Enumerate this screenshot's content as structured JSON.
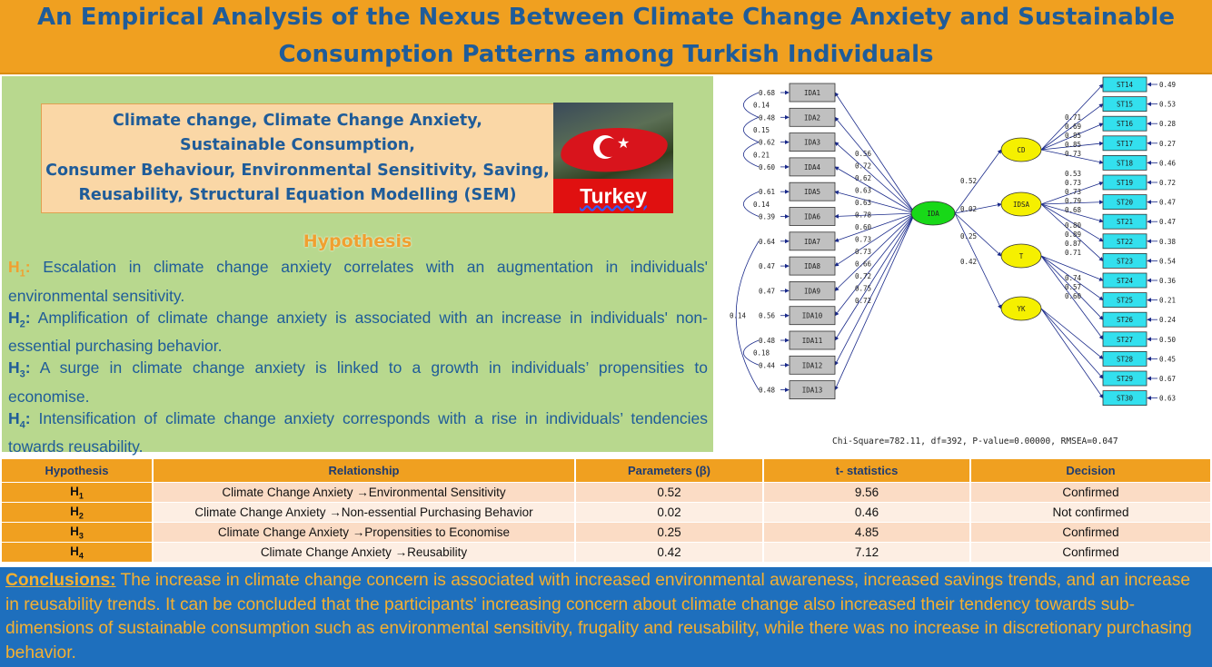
{
  "title": "An Empirical Analysis of the Nexus Between Climate Change Anxiety and Sustainable Consumption Patterns among Turkish Individuals",
  "keywords": [
    "Climate change, Climate Change Anxiety,",
    "Sustainable Consumption,",
    "Consumer Behaviour, Environmental Sensitivity, Saving,",
    "Reusability, Structural Equation Modelling (SEM)"
  ],
  "flag_label": "Turkey",
  "hypothesis_title": "Hypothesis",
  "hypotheses": [
    {
      "label": "H",
      "sub": "1",
      "text": "Escalation in climate change anxiety correlates with an augmentation in individuals' environmental sensitivity."
    },
    {
      "label": "H",
      "sub": "2",
      "text": "Amplification of climate change anxiety is associated with an increase in individuals' non-essential purchasing behavior."
    },
    {
      "label": "H",
      "sub": "3",
      "text": "A surge in climate change anxiety is linked to a growth in individuals’ propensities to economise."
    },
    {
      "label": "H",
      "sub": "4",
      "text": "Intensification of climate change anxiety corresponds with a rise in individuals’ tendencies towards reusability."
    }
  ],
  "diagram": {
    "ida_items": [
      {
        "name": "IDA1",
        "error": "0.68",
        "loading": "0.56"
      },
      {
        "name": "IDA2",
        "error": "0.48",
        "loading": "0.72"
      },
      {
        "name": "IDA3",
        "error": "0.62",
        "loading": "0.62"
      },
      {
        "name": "IDA4",
        "error": "0.60",
        "loading": "0.63"
      },
      {
        "name": "IDA5",
        "error": "0.61",
        "loading": "0.63"
      },
      {
        "name": "IDA6",
        "error": "0.39",
        "loading": "0.78"
      },
      {
        "name": "IDA7",
        "error": "0.64",
        "loading": "0.60"
      },
      {
        "name": "IDA8",
        "error": "0.47",
        "loading": "0.73"
      },
      {
        "name": "IDA9",
        "error": "0.47",
        "loading": "0.73"
      },
      {
        "name": "IDA10",
        "error": "0.56",
        "loading": "0.66"
      },
      {
        "name": "IDA11",
        "error": "0.48",
        "loading": "0.72"
      },
      {
        "name": "IDA12",
        "error": "0.44",
        "loading": "0.75"
      },
      {
        "name": "IDA13",
        "error": "0.48",
        "loading": "0.72"
      }
    ],
    "covariances": [
      {
        "from": 0,
        "to": 1,
        "value": "0.14"
      },
      {
        "from": 1,
        "to": 2,
        "value": "0.15"
      },
      {
        "from": 2,
        "to": 3,
        "value": "0.21"
      },
      {
        "from": 4,
        "to": 5,
        "value": "0.14"
      },
      {
        "from": 6,
        "to": 12,
        "value": "0.14"
      },
      {
        "from": 10,
        "to": 11,
        "value": "0.18"
      }
    ],
    "central": "IDA",
    "factors": [
      {
        "name": "CD",
        "path": "0.52"
      },
      {
        "name": "IDSA",
        "path": "0.02"
      },
      {
        "name": "T",
        "path": "0.25"
      },
      {
        "name": "YK",
        "path": "0.42"
      }
    ],
    "st_items": [
      {
        "name": "ST14",
        "error": "0.49",
        "factor": 0,
        "loading": "0.71"
      },
      {
        "name": "ST15",
        "error": "0.53",
        "factor": 0,
        "loading": "0.69"
      },
      {
        "name": "ST16",
        "error": "0.28",
        "factor": 0,
        "loading": "0.85"
      },
      {
        "name": "ST17",
        "error": "0.27",
        "factor": 0,
        "loading": "0.85"
      },
      {
        "name": "ST18",
        "error": "0.46",
        "factor": 0,
        "loading": "0.73"
      },
      {
        "name": "ST19",
        "error": "0.72",
        "factor": 1,
        "loading": "0.53"
      },
      {
        "name": "ST20",
        "error": "0.47",
        "factor": 1,
        "loading": "0.73"
      },
      {
        "name": "ST21",
        "error": "0.47",
        "factor": 1,
        "loading": "0.73"
      },
      {
        "name": "ST22",
        "error": "0.38",
        "factor": 1,
        "loading": "0.79"
      },
      {
        "name": "ST23",
        "error": "0.54",
        "factor": 1,
        "loading": "0.68"
      },
      {
        "name": "ST24",
        "error": "0.36",
        "factor": 2,
        "loading": "0.80"
      },
      {
        "name": "ST25",
        "error": "0.21",
        "factor": 2,
        "loading": "0.89"
      },
      {
        "name": "ST26",
        "error": "0.24",
        "factor": 2,
        "loading": "0.87"
      },
      {
        "name": "ST27",
        "error": "0.50",
        "factor": 2,
        "loading": "0.71"
      },
      {
        "name": "ST28",
        "error": "0.45",
        "factor": 3,
        "loading": "0.74"
      },
      {
        "name": "ST29",
        "error": "0.67",
        "factor": 3,
        "loading": "0.57"
      },
      {
        "name": "ST30",
        "error": "0.63",
        "factor": 3,
        "loading": "0.60"
      }
    ],
    "fit_stats": "Chi-Square=782.11, df=392, P-value=0.00000, RMSEA=0.047"
  },
  "results_table": {
    "headers": [
      "Hypothesis",
      "Relationship",
      "Parameters (β)",
      "t- statistics",
      "Decision"
    ],
    "rows": [
      {
        "h": "H",
        "sub": "1",
        "relationship": "Climate Change Anxiety →Environmental Sensitivity",
        "beta": "0.52",
        "t": "9.56",
        "decision": "Confirmed"
      },
      {
        "h": "H",
        "sub": "2",
        "relationship": "Climate Change Anxiety →Non-essential Purchasing Behavior",
        "beta": "0.02",
        "t": "0.46",
        "decision": "Not confirmed"
      },
      {
        "h": "H",
        "sub": "3",
        "relationship": "Climate Change Anxiety →Propensities to Economise",
        "beta": "0.25",
        "t": "4.85",
        "decision": "Confirmed"
      },
      {
        "h": "H",
        "sub": "4",
        "relationship": "Climate Change Anxiety →Reusability",
        "beta": "0.42",
        "t": "7.12",
        "decision": "Confirmed"
      }
    ]
  },
  "conclusions": {
    "label": "Conclusions:",
    "text": "The increase in climate change concern is associated with increased environmental awareness, increased savings trends, and an increase in reusability trends. It can be concluded that the participants' increasing concern about climate change also increased their tendency towards sub-dimensions of sustainable consumption such as environmental sensitivity, frugality and reusability, while there was no increase in discretionary purchasing behavior."
  },
  "colors": {
    "orange": "#f0a020",
    "blue_text": "#1f5c99",
    "green_panel": "#b8d88e",
    "conclusion_bg": "#1e6fbd",
    "indicator_gray": "#c0c0c0",
    "st_cyan": "#33e0ee",
    "factor_yellow": "#f5f000",
    "central_green": "#18d818"
  }
}
